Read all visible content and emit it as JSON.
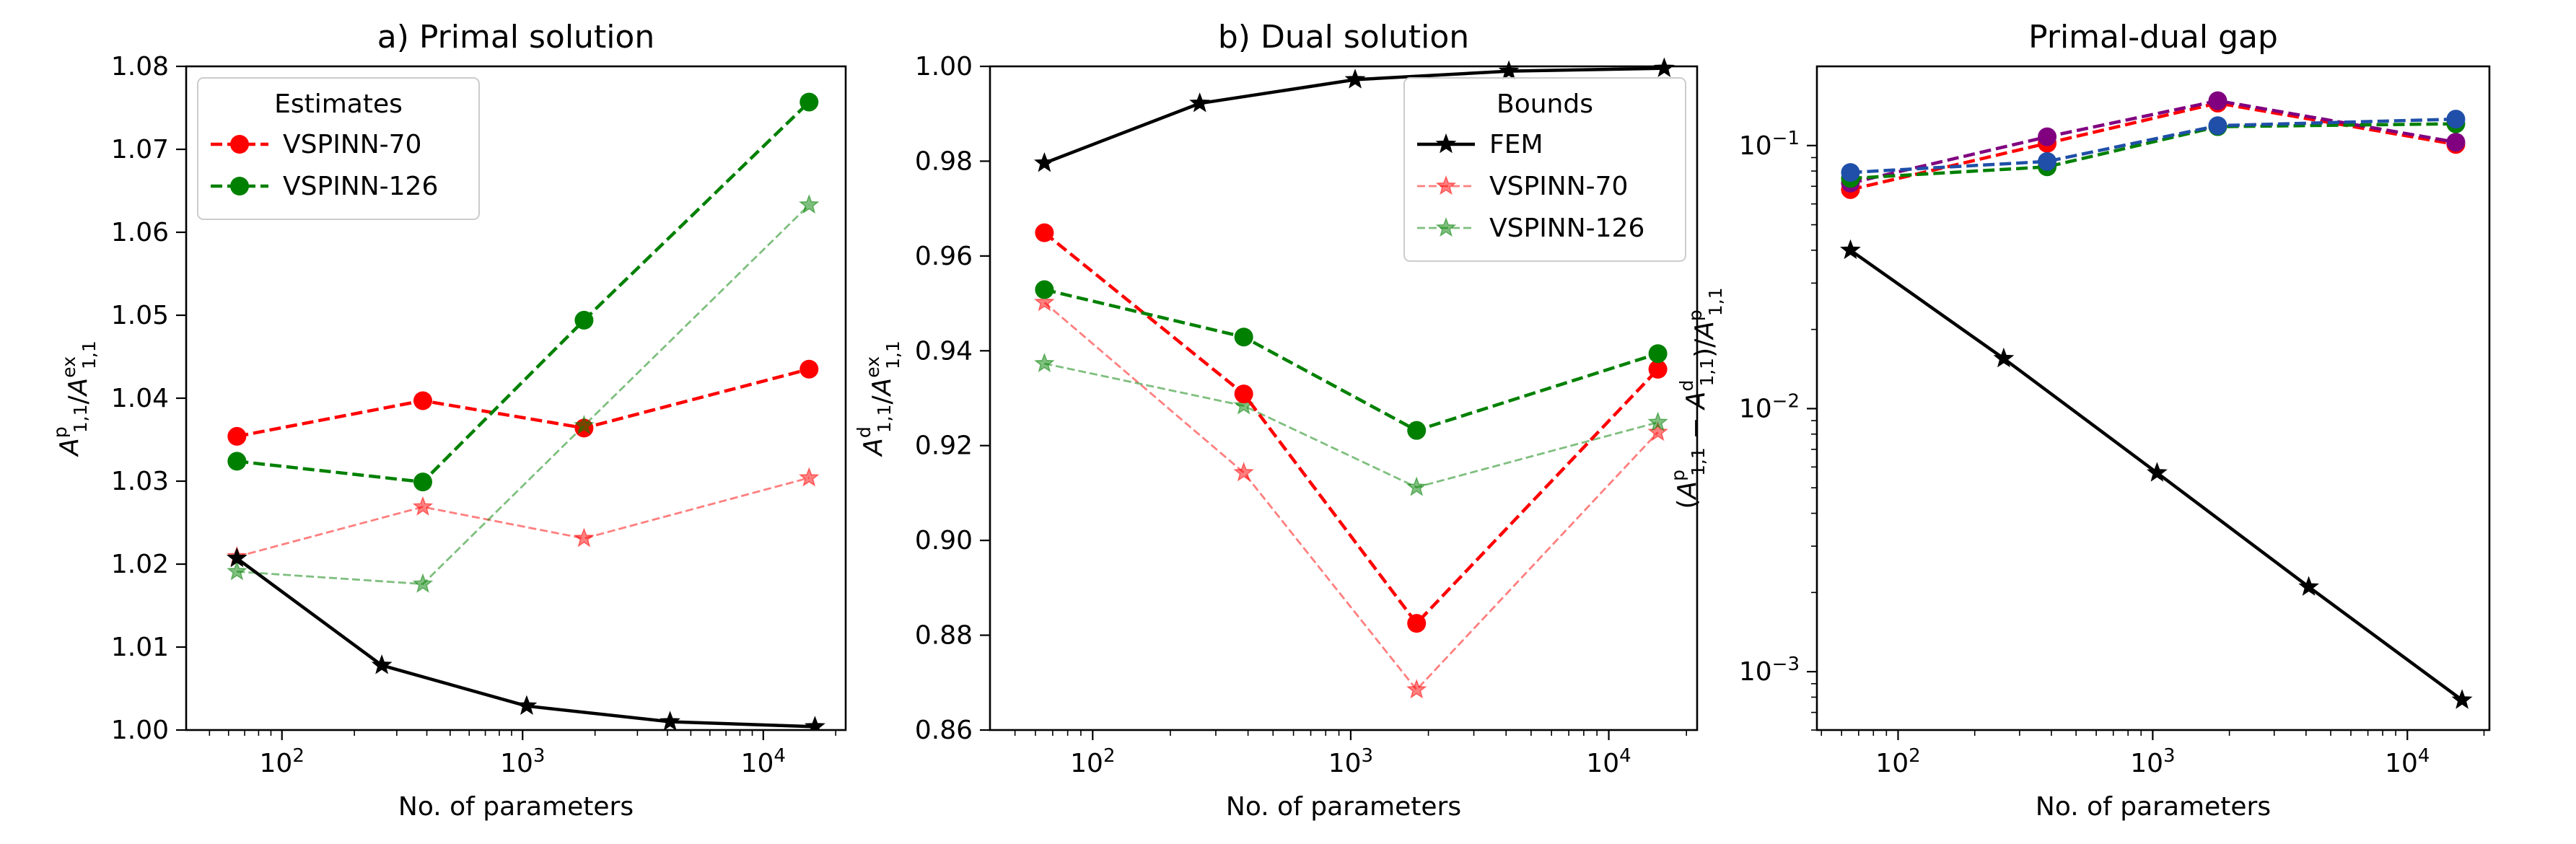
{
  "chart_data": [
    {
      "id": "primal",
      "type": "line",
      "title": "a) Primal solution",
      "xlabel": "No. of parameters",
      "ylabel": {
        "base": "A",
        "sup": "p",
        "sub": "1,1",
        "sep": "/",
        "base2": "A",
        "sup2": "ex",
        "sub2": "1,1"
      },
      "xscale": "log",
      "yscale": "linear",
      "xlim": [
        40,
        22000
      ],
      "ylim": [
        1.0,
        1.08
      ],
      "xticks": [
        100,
        1000,
        10000
      ],
      "xtick_labels": [
        {
          "base": "10",
          "exp": "2"
        },
        {
          "base": "10",
          "exp": "3"
        },
        {
          "base": "10",
          "exp": "4"
        }
      ],
      "yticks": [
        1.0,
        1.01,
        1.02,
        1.03,
        1.04,
        1.05,
        1.06,
        1.07,
        1.08
      ],
      "ytick_labels": [
        "1.00",
        "1.01",
        "1.02",
        "1.03",
        "1.04",
        "1.05",
        "1.06",
        "1.07",
        "1.08"
      ],
      "legend": {
        "title": "Estimates",
        "location": "upper-left",
        "entries": [
          "VSPINN-70",
          "VSPINN-126"
        ]
      },
      "series": [
        {
          "name": "VSPINN-70",
          "legend": true,
          "color": "#ff0000",
          "style": "dashed",
          "marker": "circle",
          "alpha": 1,
          "x": [
            65,
            385,
            1800,
            15500
          ],
          "y": [
            1.0354,
            1.0397,
            1.0364,
            1.0435
          ]
        },
        {
          "name": "VSPINN-126",
          "legend": true,
          "color": "#008000",
          "style": "dashed",
          "marker": "circle",
          "alpha": 1,
          "x": [
            65,
            385,
            1800,
            15500
          ],
          "y": [
            1.0324,
            1.0299,
            1.0494,
            1.0757
          ]
        },
        {
          "color": "#ff0000",
          "style": "dashed-thin",
          "marker": "star",
          "alpha": 0.5,
          "x": [
            65,
            385,
            1800,
            15500
          ],
          "y": [
            1.0209,
            1.0269,
            1.0231,
            1.0304
          ]
        },
        {
          "color": "#008000",
          "style": "dashed-thin",
          "marker": "star",
          "alpha": 0.5,
          "x": [
            65,
            385,
            1800,
            15500
          ],
          "y": [
            1.0191,
            1.0176,
            1.0367,
            1.0633
          ]
        },
        {
          "color": "#000000",
          "style": "solid",
          "marker": "star",
          "alpha": 1,
          "x": [
            65,
            260,
            1040,
            4100,
            16400
          ],
          "y": [
            1.0207,
            1.0078,
            1.0029,
            1.001,
            1.0004
          ]
        }
      ]
    },
    {
      "id": "dual",
      "type": "line",
      "title": "b) Dual solution",
      "xlabel": "No. of parameters",
      "ylabel": {
        "base": "A",
        "sup": "d",
        "sub": "1,1",
        "sep": "/",
        "base2": "A",
        "sup2": "ex",
        "sub2": "1,1"
      },
      "xscale": "log",
      "yscale": "linear",
      "xlim": [
        40,
        22000
      ],
      "ylim": [
        0.86,
        1.0
      ],
      "xticks": [
        100,
        1000,
        10000
      ],
      "xtick_labels": [
        {
          "base": "10",
          "exp": "2"
        },
        {
          "base": "10",
          "exp": "3"
        },
        {
          "base": "10",
          "exp": "4"
        }
      ],
      "yticks": [
        0.86,
        0.88,
        0.9,
        0.92,
        0.94,
        0.96,
        0.98,
        1.0
      ],
      "ytick_labels": [
        "0.86",
        "0.88",
        "0.90",
        "0.92",
        "0.94",
        "0.96",
        "0.98",
        "1.00"
      ],
      "legend": {
        "title": "Bounds",
        "location": "upper-right",
        "entries": [
          "FEM",
          "VSPINN-70",
          "VSPINN-126"
        ]
      },
      "series": [
        {
          "name": "FEM",
          "legend": true,
          "color": "#000000",
          "style": "solid",
          "marker": "star",
          "alpha": 1,
          "x": [
            65,
            260,
            1040,
            4100,
            16400
          ],
          "y": [
            0.9796,
            0.9922,
            0.9972,
            0.999,
            0.9996
          ]
        },
        {
          "name": "VSPINN-70",
          "legend": true,
          "color": "#ff0000",
          "style": "dashed-thin",
          "marker": "star",
          "alpha": 0.5,
          "x": [
            65,
            385,
            1800,
            15500
          ],
          "y": [
            0.9502,
            0.9143,
            0.8685,
            0.9228
          ]
        },
        {
          "name": "VSPINN-126",
          "legend": true,
          "color": "#008000",
          "style": "dashed-thin",
          "marker": "star",
          "alpha": 0.5,
          "x": [
            65,
            385,
            1800,
            15500
          ],
          "y": [
            0.9373,
            0.9284,
            0.9112,
            0.9249
          ]
        },
        {
          "color": "#ff0000",
          "style": "dashed",
          "marker": "circle",
          "alpha": 1,
          "x": [
            65,
            385,
            1800,
            15500
          ],
          "y": [
            0.9649,
            0.9309,
            0.8825,
            0.9361
          ]
        },
        {
          "color": "#008000",
          "style": "dashed",
          "marker": "circle",
          "alpha": 1,
          "x": [
            65,
            385,
            1800,
            15500
          ],
          "y": [
            0.9529,
            0.9429,
            0.9232,
            0.9394
          ]
        }
      ]
    },
    {
      "id": "gap",
      "type": "line",
      "title": "Primal-dual gap",
      "xlabel": "No. of parameters",
      "ylabel": {
        "open": "(",
        "base": "A",
        "sup": "p",
        "sub": "1,1",
        "minus": " − ",
        "base2": "A",
        "sup2": "d",
        "sub2": "1,1",
        "close": ")/",
        "base3": "A",
        "sup3": "p",
        "sub3": "1,1"
      },
      "xscale": "log",
      "yscale": "log",
      "xlim": [
        48,
        21000
      ],
      "ylim": [
        0.0006,
        0.2
      ],
      "xticks": [
        100,
        1000,
        10000
      ],
      "xtick_labels": [
        {
          "base": "10",
          "exp": "2"
        },
        {
          "base": "10",
          "exp": "3"
        },
        {
          "base": "10",
          "exp": "4"
        }
      ],
      "yticks": [
        0.001,
        0.01,
        0.1
      ],
      "ytick_labels": [
        {
          "base": "10",
          "exp": "−3"
        },
        {
          "base": "10",
          "exp": "−2"
        },
        {
          "base": "10",
          "exp": "−1"
        }
      ],
      "series": [
        {
          "color": "#ff0000",
          "style": "dashed",
          "marker": "circle",
          "alpha": 1,
          "x": [
            65,
            385,
            1800,
            15500
          ],
          "y": [
            0.068,
            0.102,
            0.145,
            0.101
          ]
        },
        {
          "color": "#800080",
          "style": "dashed",
          "marker": "circle",
          "alpha": 1,
          "x": [
            65,
            385,
            1800,
            15500
          ],
          "y": [
            0.072,
            0.108,
            0.148,
            0.103
          ]
        },
        {
          "color": "#008000",
          "style": "dashed",
          "marker": "circle",
          "alpha": 1,
          "x": [
            65,
            385,
            1800,
            15500
          ],
          "y": [
            0.075,
            0.083,
            0.118,
            0.121
          ]
        },
        {
          "color": "#1f4fa8",
          "style": "dashed",
          "marker": "circle",
          "alpha": 1,
          "x": [
            65,
            385,
            1800,
            15500
          ],
          "y": [
            0.079,
            0.087,
            0.119,
            0.126
          ]
        },
        {
          "color": "#000000",
          "style": "solid",
          "marker": "star",
          "alpha": 1,
          "x": [
            65,
            260,
            1040,
            4100,
            16400
          ],
          "y": [
            0.04,
            0.0155,
            0.0057,
            0.0021,
            0.00078
          ]
        }
      ]
    }
  ]
}
